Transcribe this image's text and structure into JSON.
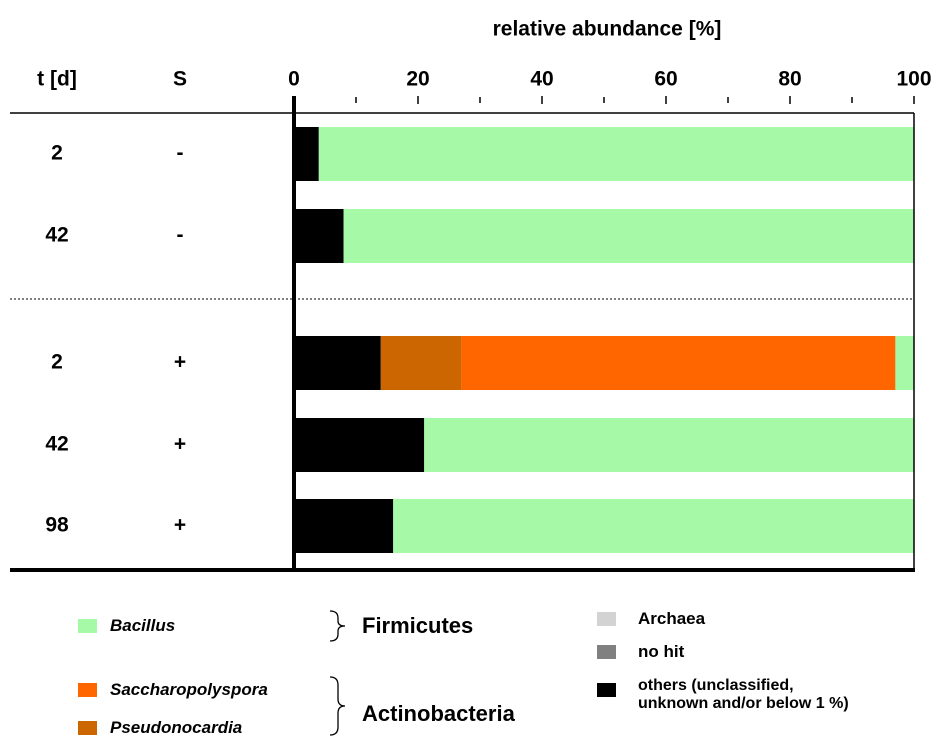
{
  "chart_data": {
    "type": "bar",
    "orientation": "horizontal",
    "stacked": true,
    "title": "relative abundance [%]",
    "row_headers": [
      "t [d]",
      "S"
    ],
    "t_labels": [
      "2",
      "42",
      "2",
      "42",
      "98"
    ],
    "s_labels": [
      "-",
      "-",
      "+",
      "+",
      "+"
    ],
    "xlim": [
      0,
      100
    ],
    "xticks": [
      0,
      20,
      40,
      60,
      80,
      100
    ],
    "xminorticks": [
      10,
      30,
      50,
      70,
      90
    ],
    "series": [
      {
        "name": "others (unclassified, unknown and/or below 1 %)",
        "color": "#000000",
        "values": [
          4,
          8,
          14,
          21,
          16
        ]
      },
      {
        "name": "Pseudonocardia",
        "color": "#cc6600",
        "values": [
          0,
          0,
          13,
          0,
          0
        ]
      },
      {
        "name": "Saccharopolyspora",
        "color": "#ff6600",
        "values": [
          0,
          0,
          70,
          0,
          0
        ]
      },
      {
        "name": "Bacillus",
        "color": "#a6f9a6",
        "values": [
          96,
          92,
          3,
          79,
          84
        ]
      },
      {
        "name": "Archaea",
        "color": "#d3d3d3",
        "values": [
          0,
          0,
          0,
          0,
          0
        ]
      },
      {
        "name": "no hit",
        "color": "#808080",
        "values": [
          0,
          0,
          0,
          0,
          0
        ]
      }
    ],
    "legend_groups": [
      "Firmicutes",
      "Actinobacteria"
    ]
  }
}
